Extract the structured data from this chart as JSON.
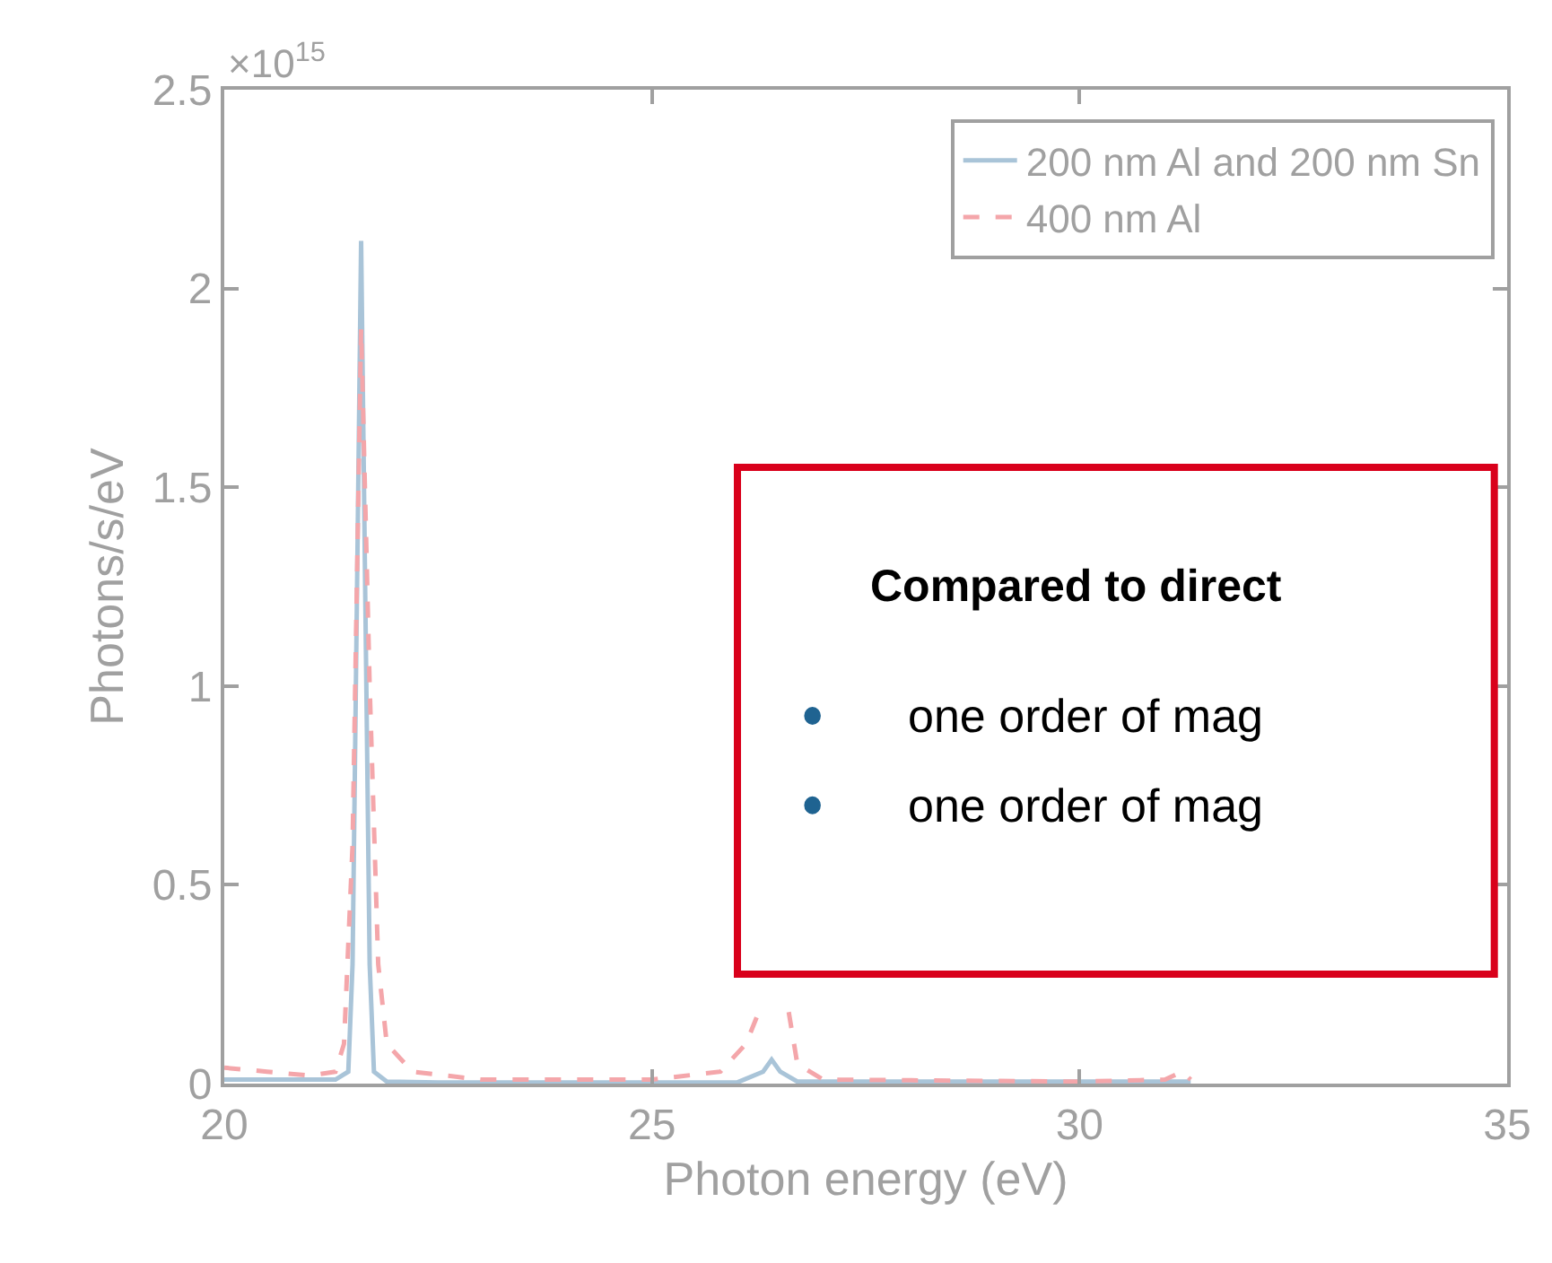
{
  "chart_data": {
    "type": "line",
    "xlabel": "Photon energy (eV)",
    "ylabel": "Photons/s/eV",
    "xlim": [
      20,
      35
    ],
    "xticks": [
      20,
      25,
      30,
      35
    ],
    "ylim": [
      0,
      2.5
    ],
    "yticks": [
      0,
      0.5,
      1,
      1.5,
      2,
      2.5
    ],
    "legend": "top right",
    "marker": "none",
    "annotations": [
      "×10$^{15}$",
      "Compared to direct",
      "one order of mag",
      "one order of mag"
    ],
    "series": [
      {
        "name": "200 nm Al and 200 nm Sn",
        "color": "#a9c4d8",
        "line_style": "solid",
        "x": [
          20,
          21.0,
          21.3,
          21.45,
          21.5,
          21.55,
          21.6,
          21.65,
          21.7,
          21.75,
          21.9,
          22.5,
          26.0,
          26.3,
          26.4,
          26.5,
          26.7,
          28,
          30,
          31.3
        ],
        "values": [
          0.01,
          0.01,
          0.01,
          0.03,
          0.3,
          1.2,
          2.12,
          1.2,
          0.3,
          0.03,
          0.005,
          0.003,
          0.003,
          0.03,
          0.06,
          0.03,
          0.005,
          0.005,
          0.005,
          0.005
        ]
      },
      {
        "name": "400 nm Al",
        "color": "#f4a6aa",
        "line_style": "dashed",
        "x": [
          20,
          20.5,
          21,
          21.3,
          21.4,
          21.5,
          21.6,
          21.7,
          21.8,
          21.9,
          22.2,
          23,
          25,
          25.8,
          26.1,
          26.25,
          26.4,
          26.6,
          26.7,
          27,
          30,
          31,
          31.2,
          31.3
        ],
        "values": [
          0.04,
          0.03,
          0.02,
          0.03,
          0.1,
          0.6,
          1.9,
          1.0,
          0.3,
          0.1,
          0.03,
          0.01,
          0.01,
          0.03,
          0.1,
          0.18,
          null,
          0.18,
          0.05,
          0.01,
          0.005,
          0.01,
          0.03,
          0.01
        ]
      }
    ]
  }
}
